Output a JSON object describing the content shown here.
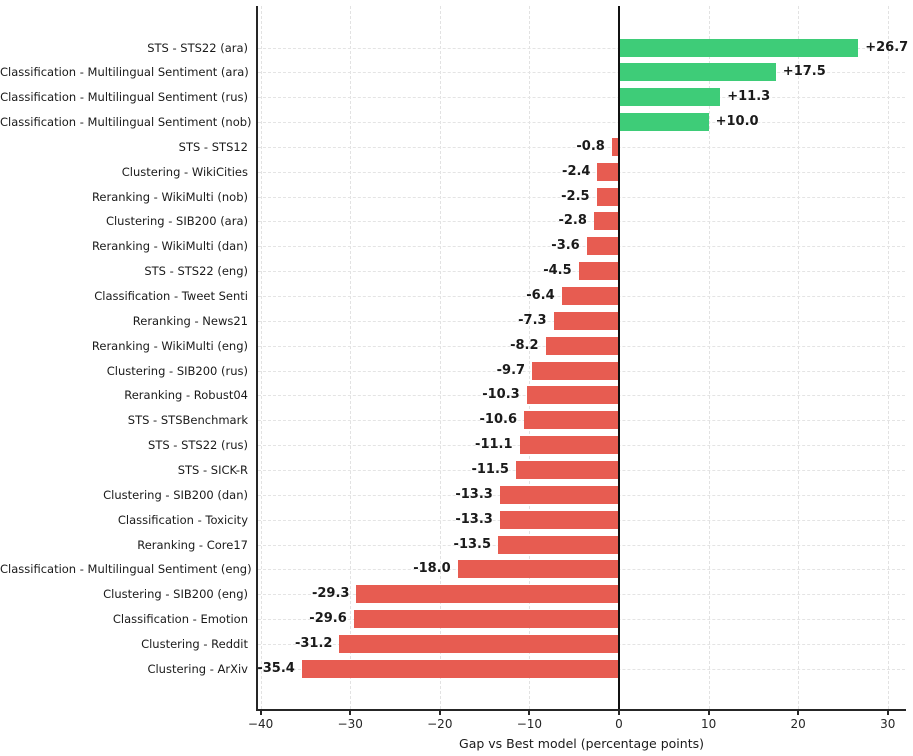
{
  "chart_data": {
    "type": "bar",
    "orientation": "horizontal",
    "title": "",
    "xlabel": "Gap vs Best model (percentage points)",
    "categories": [
      "STS - STS22 (ara)",
      "Classification - Multilingual Sentiment (ara)",
      "Classification - Multilingual Sentiment (rus)",
      "Classification - Multilingual Sentiment (nob)",
      "STS - STS12",
      "Clustering - WikiCities",
      "Reranking - WikiMulti (nob)",
      "Clustering - SIB200 (ara)",
      "Reranking - WikiMulti (dan)",
      "STS - STS22 (eng)",
      "Classification - Tweet Senti",
      "Reranking - News21",
      "Reranking - WikiMulti (eng)",
      "Clustering - SIB200 (rus)",
      "Reranking - Robust04",
      "STS - STSBenchmark",
      "STS - STS22 (rus)",
      "STS - SICK-R",
      "Clustering - SIB200 (dan)",
      "Classification - Toxicity",
      "Reranking - Core17",
      "Classification - Multilingual Sentiment (eng)",
      "Clustering - SIB200 (eng)",
      "Classification - Emotion",
      "Clustering - Reddit",
      "Clustering - ArXiv"
    ],
    "values": [
      26.7,
      17.5,
      11.3,
      10.0,
      -0.8,
      -2.4,
      -2.5,
      -2.8,
      -3.6,
      -4.5,
      -6.4,
      -7.3,
      -8.2,
      -9.7,
      -10.3,
      -10.6,
      -11.1,
      -11.5,
      -13.3,
      -13.3,
      -13.5,
      -18.0,
      -29.3,
      -29.6,
      -31.2,
      -35.4
    ],
    "value_labels": [
      "+26.7",
      "+17.5",
      "+11.3",
      "+10.0",
      "-0.8",
      "-2.4",
      "-2.5",
      "-2.8",
      "-3.6",
      "-4.5",
      "-6.4",
      "-7.3",
      "-8.2",
      "-9.7",
      "-10.3",
      "-10.6",
      "-11.1",
      "-11.5",
      "-13.3",
      "-13.3",
      "-13.5",
      "-18.0",
      "-29.3",
      "-29.6",
      "-31.2",
      "-35.4"
    ],
    "xticks": [
      -40,
      -30,
      -20,
      -10,
      0,
      10,
      20,
      30
    ],
    "xtick_labels": [
      "−40",
      "−30",
      "−20",
      "−10",
      "0",
      "10",
      "20",
      "30"
    ],
    "xlim": [
      -40.3,
      31.9
    ],
    "grid": true,
    "grid_style": "dashed",
    "legend": "none",
    "positive_color": "#3ecc78",
    "negative_color": "#e75c51",
    "zero_line_color": "#111111",
    "spine_color": "#262626"
  }
}
